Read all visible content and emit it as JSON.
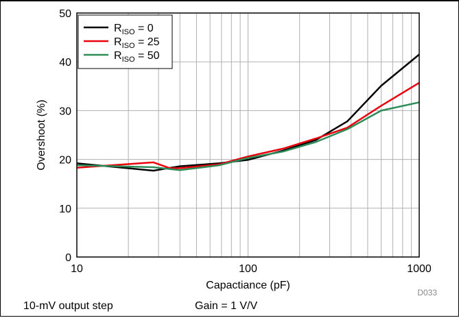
{
  "chart_data": {
    "type": "line",
    "title": "",
    "xlabel": "Capactiance (pF)",
    "ylabel": "Overshoot (%)",
    "xscale": "log",
    "xlim": [
      10,
      1000
    ],
    "ylim": [
      0,
      50
    ],
    "xticks": [
      10,
      100,
      1000
    ],
    "xtick_labels": [
      "10",
      "100",
      "1000"
    ],
    "yticks": [
      0,
      10,
      20,
      30,
      40,
      50
    ],
    "ytick_labels": [
      "0",
      "10",
      "20",
      "30",
      "40",
      "50"
    ],
    "grid": true,
    "legend_position": "top-left",
    "series": [
      {
        "name": "R_ISO = 0",
        "legend_base": "R",
        "legend_sub": "ISO",
        "legend_rest": " = 0",
        "color": "#000000",
        "x": [
          10,
          28,
          40,
          68,
          100,
          160,
          250,
          380,
          600,
          1000
        ],
        "y": [
          19.2,
          17.7,
          18.6,
          19.2,
          19.9,
          21.8,
          24.0,
          27.8,
          35.1,
          41.5
        ]
      },
      {
        "name": "R_ISO = 25",
        "legend_base": "R",
        "legend_sub": "ISO",
        "legend_rest": " = 25",
        "color": "#e8000b",
        "x": [
          10,
          28,
          35,
          40,
          68,
          100,
          160,
          250,
          380,
          600,
          1000
        ],
        "y": [
          18.3,
          19.4,
          18.2,
          18.2,
          19.0,
          20.6,
          22.2,
          24.3,
          26.5,
          31.0,
          35.7
        ]
      },
      {
        "name": "R_ISO = 50",
        "legend_base": "R",
        "legend_sub": "ISO",
        "legend_rest": " = 50",
        "color": "#2e8b57",
        "x": [
          10,
          28,
          40,
          68,
          100,
          160,
          250,
          380,
          600,
          1000
        ],
        "y": [
          18.8,
          18.4,
          17.8,
          18.8,
          20.3,
          21.6,
          23.6,
          26.2,
          30.0,
          31.7
        ]
      }
    ]
  },
  "figure_id": "D033",
  "footnote_left": "10-mV output step",
  "footnote_right": "Gain = 1 V/V"
}
